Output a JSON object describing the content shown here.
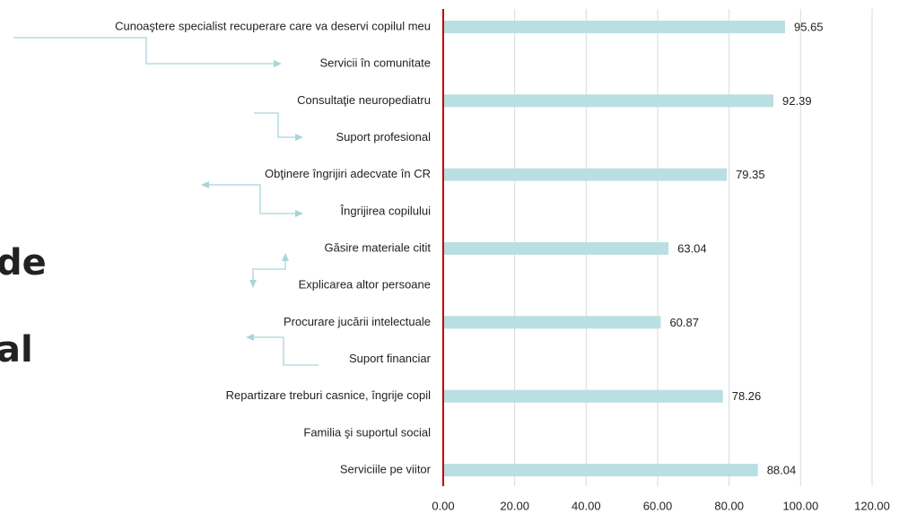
{
  "chart_data": {
    "type": "bar",
    "orientation": "horizontal",
    "annotations": [
      "de",
      "al"
    ],
    "categories": [
      "Cunoaştere specialist recuperare care va deservi copilul meu",
      "Servicii în comunitate",
      "Consultaţie neuropediatru",
      "Suport profesional",
      "Obţinere îngrijiri adecvate în CR",
      "Îngrijirea copilului",
      "Găsire materiale citit",
      "Explicarea altor persoane",
      "Procurare jucării intelectuale",
      "Suport financiar",
      "Repartizare treburi casnice, îngrije copil",
      "Familia şi suportul social",
      "Serviciile pe viitor"
    ],
    "values": [
      95.65,
      null,
      92.39,
      null,
      79.35,
      null,
      63.04,
      null,
      60.87,
      null,
      78.26,
      null,
      88.04
    ],
    "color": "#b9dfe3",
    "xlim": [
      0,
      120
    ],
    "xticks": [
      {
        "value": 0,
        "label": "0.00"
      },
      {
        "value": 20,
        "label": "20.00"
      },
      {
        "value": 40,
        "label": "40.00"
      },
      {
        "value": 60,
        "label": "60.00"
      },
      {
        "value": 80,
        "label": "80.00"
      },
      {
        "value": 100,
        "label": "100.00"
      },
      {
        "value": 120,
        "label": "120.00"
      }
    ],
    "grid": true
  }
}
